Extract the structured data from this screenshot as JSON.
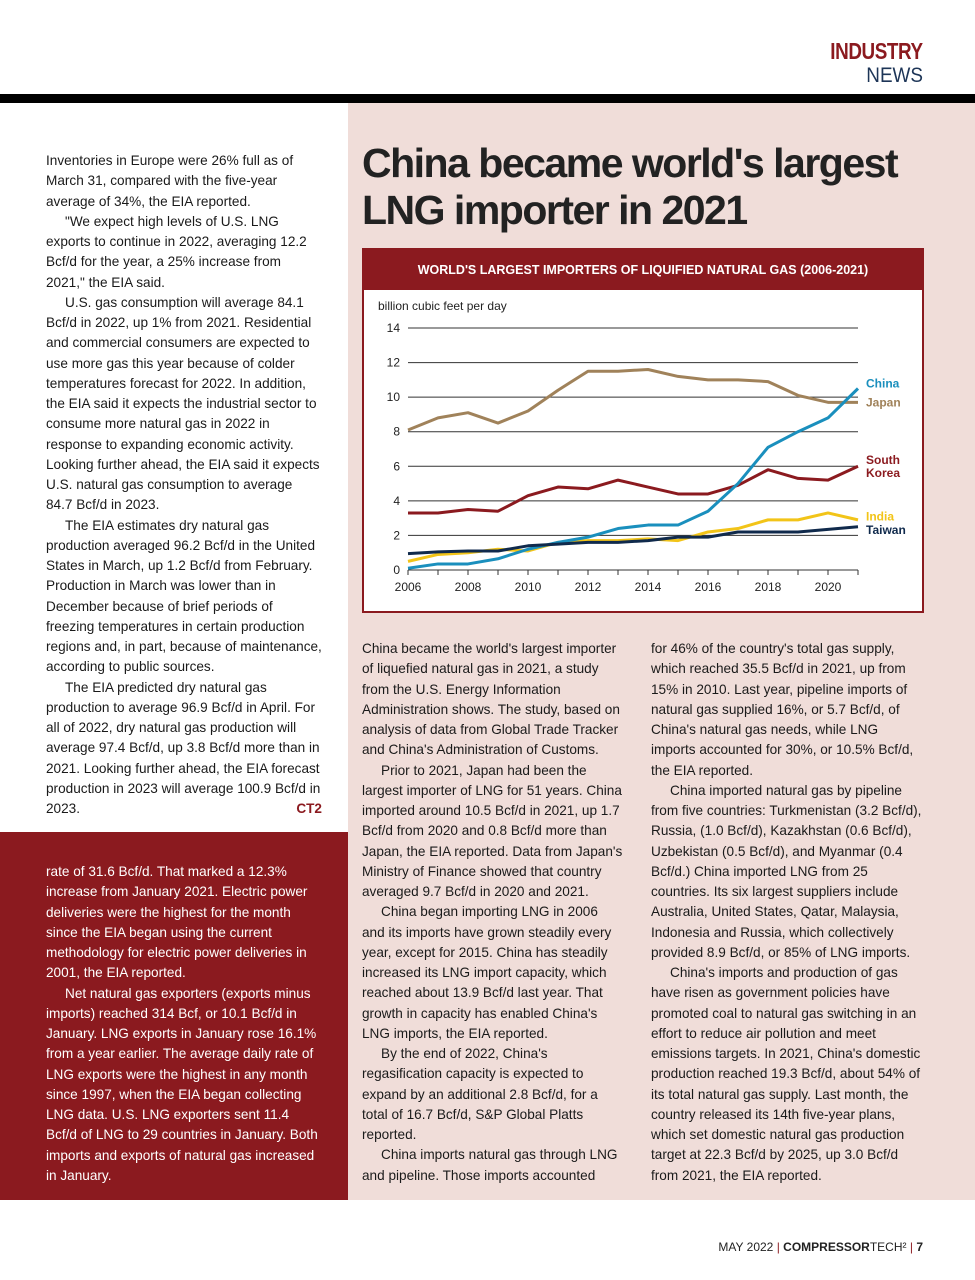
{
  "header": {
    "section1": "INDUSTRY",
    "section2": "NEWS"
  },
  "left_column": [
    "Inventories in Europe were 26% full as of March 31, compared with the five-year average of 34%, the EIA reported.",
    "\"We expect high levels of U.S. LNG exports to continue in 2022, averaging 12.2 Bcf/d for the year, a 25% increase from 2021,\" the EIA said.",
    "U.S. gas consumption will average 84.1 Bcf/d in 2022, up 1% from 2021. Residential and commercial consumers are expected to use more gas this year because of colder temperatures forecast for 2022. In addition, the EIA said it expects the industrial sector to consume more natural gas in 2022 in response to expanding economic activity. Looking further ahead, the EIA said it expects U.S. natural gas consumption to average 84.7 Bcf/d in 2023.",
    "The EIA estimates dry natural gas production averaged 96.2 Bcf/d in the United States in March, up 1.2 Bcf/d from February. Production in March was lower than in December because of brief periods of freezing temperatures in certain production regions and, in part, because of maintenance, according to public sources.",
    "The EIA predicted dry natural gas production to average 96.9 Bcf/d in April. For all of 2022, dry natural gas production will average 97.4 Bcf/d, up 3.8 Bcf/d more than in 2021. Looking further ahead, the EIA forecast production in 2023 will average 100.9 Bcf/d in 2023."
  ],
  "end_mark": "CT2",
  "sidebar_box": [
    "rate of 31.6 Bcf/d. That marked a 12.3% increase from January 2021. Electric power deliveries were the highest for the month since the EIA began using the current methodology for electric power deliveries in 2001, the EIA reported.",
    "Net natural gas exporters (exports minus imports) reached 314 Bcf, or 10.1 Bcf/d in January. LNG exports in January rose 16.1% from a year earlier. The average daily rate of LNG exports were the highest in any month since 1997, when the EIA began collecting LNG data. U.S. LNG exporters sent 11.4 Bcf/d of LNG to 29 countries in January. Both imports and exports of natural gas increased in January."
  ],
  "article": {
    "title": "China became world's largest LNG importer in 2021",
    "middle_column": [
      "China became the world's largest importer of liquefied natural gas in 2021, a study from the U.S. Energy Information Administration shows. The study, based on analysis of data from Global Trade Tracker and China's Administration of Customs.",
      "Prior to 2021, Japan had been the largest importer of LNG for 51 years. China imported around 10.5 Bcf/d in 2021, up 1.7 Bcf/d from 2020 and 0.8 Bcf/d more than Japan, the EIA reported. Data from Japan's Ministry of Finance showed that country averaged 9.7 Bcf/d in 2020 and 2021.",
      "China began importing LNG in 2006 and its imports have grown steadily every year, except for 2015. China has steadily increased its LNG import capacity, which reached about 13.9 Bcf/d last year. That growth in capacity has enabled China's LNG imports, the EIA reported.",
      "By the end of 2022, China's regasification capacity is expected to expand by an additional 2.8 Bcf/d, for a total of 16.7 Bcf/d, S&P Global Platts reported.",
      "China imports natural gas through LNG and pipeline. Those imports accounted"
    ],
    "right_column": [
      "for 46% of the country's total gas supply, which reached 35.5 Bcf/d in 2021, up from 15% in 2010. Last year, pipeline imports of natural gas supplied 16%, or 5.7 Bcf/d, of China's natural gas needs, while LNG imports accounted for 30%, or 10.5% Bcf/d, the EIA reported.",
      "China imported natural gas by pipeline from five countries: Turkmenistan (3.2 Bcf/d), Russia, (1.0 Bcf/d), Kazakhstan (0.6 Bcf/d), Uzbekistan (0.5 Bcf/d), and Myanmar (0.4 Bcf/d.) China imported LNG from 25 countries. Its six largest suppliers include Australia, United States, Qatar, Malaysia, Indonesia and Russia, which collectively provided 8.9 Bcf/d, or 85% of LNG imports.",
      "China's imports and production of gas have risen as government policies have promoted coal to natural gas switching in an effort to reduce air pollution and meet emissions targets. In 2021, China's domestic production reached 19.3 Bcf/d, about 54% of its total natural gas supply. Last month, the country released its 14th five-year plans, which set domestic natural gas production target at 22.3 Bcf/d by 2025, up 3.0 Bcf/d from 2021, the EIA reported."
    ]
  },
  "chart_data": {
    "type": "line",
    "title": "WORLD'S LARGEST IMPORTERS OF LIQUIFIED NATURAL GAS (2006-2021)",
    "ylabel": "billion cubic feet per day",
    "ylim": [
      0,
      14
    ],
    "yticks": [
      "0",
      "2",
      "4",
      "6",
      "8",
      "10",
      "12",
      "14"
    ],
    "xticks": [
      "2006",
      "2008",
      "2010",
      "2012",
      "2014",
      "2016",
      "2018",
      "2020"
    ],
    "x": [
      2006,
      2007,
      2008,
      2009,
      2010,
      2011,
      2012,
      2013,
      2014,
      2015,
      2016,
      2017,
      2018,
      2019,
      2020,
      2021
    ],
    "grid": true,
    "series": [
      {
        "name": "Japan",
        "label": "Japan",
        "color": "#a0825a",
        "values": [
          8.1,
          8.8,
          9.1,
          8.5,
          9.2,
          10.4,
          11.5,
          11.5,
          11.6,
          11.2,
          11.0,
          11.0,
          10.9,
          10.1,
          9.7,
          9.7
        ]
      },
      {
        "name": "South Korea",
        "label": "South Korea",
        "color": "#8b1a1f",
        "values": [
          3.3,
          3.3,
          3.5,
          3.4,
          4.3,
          4.8,
          4.7,
          5.2,
          4.8,
          4.4,
          4.4,
          4.9,
          5.8,
          5.3,
          5.2,
          6.0
        ]
      },
      {
        "name": "India",
        "label": "India",
        "color": "#f2c418",
        "values": [
          0.5,
          0.9,
          1.0,
          1.2,
          1.1,
          1.6,
          1.7,
          1.7,
          1.8,
          1.7,
          2.2,
          2.4,
          2.9,
          2.9,
          3.3,
          2.9
        ]
      },
      {
        "name": "China",
        "label": "China",
        "color": "#1a8fbd",
        "values": [
          0.1,
          0.35,
          0.35,
          0.65,
          1.2,
          1.6,
          1.9,
          2.4,
          2.6,
          2.6,
          3.4,
          5.0,
          7.1,
          8.0,
          8.8,
          10.5
        ]
      },
      {
        "name": "Taiwan",
        "label": "Taiwan",
        "color": "#102a4c",
        "values": [
          0.95,
          1.05,
          1.1,
          1.1,
          1.4,
          1.5,
          1.6,
          1.6,
          1.7,
          1.9,
          1.9,
          2.2,
          2.2,
          2.2,
          2.35,
          2.5
        ]
      }
    ]
  },
  "footer": {
    "date": "MAY 2022",
    "brand_bold": "COMPRESSOR",
    "brand_light": "TECH²",
    "page": "7"
  }
}
